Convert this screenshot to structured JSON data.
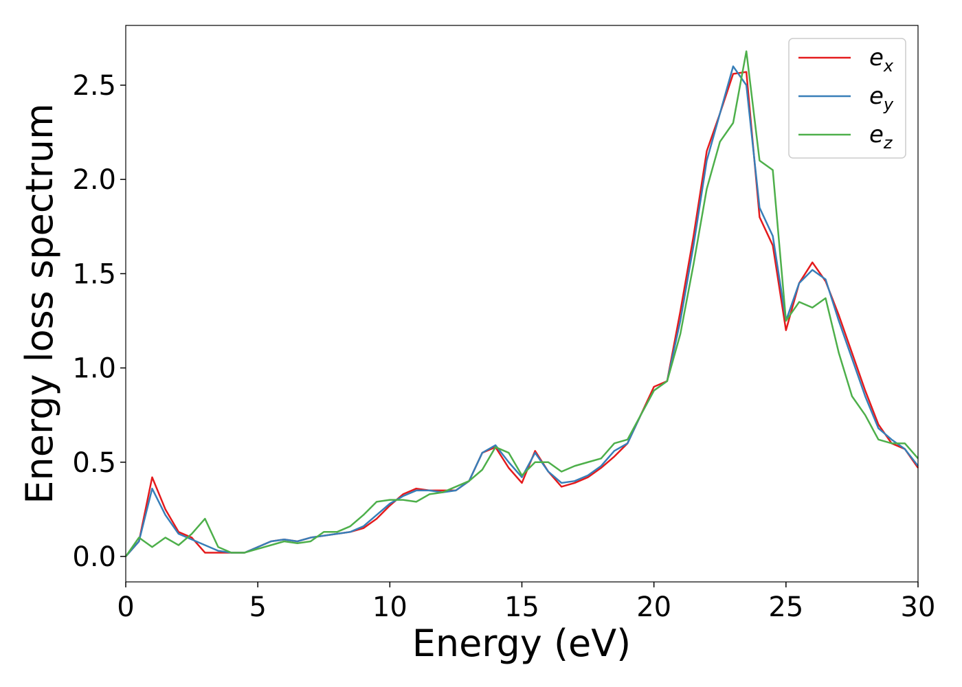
{
  "chart_data": {
    "type": "line",
    "xlabel": "Energy (eV)",
    "ylabel": "Energy loss spectrum",
    "x": [
      0,
      0.5,
      1,
      1.5,
      2,
      2.5,
      3,
      3.5,
      4,
      4.5,
      5,
      5.5,
      6,
      6.5,
      7,
      7.5,
      8,
      8.5,
      9,
      9.5,
      10,
      10.5,
      11,
      11.5,
      12,
      12.5,
      13,
      13.5,
      14,
      14.5,
      15,
      15.5,
      16,
      16.5,
      17,
      17.5,
      18,
      18.5,
      19,
      19.5,
      20,
      20.5,
      21,
      21.5,
      22,
      22.5,
      23,
      23.5,
      24,
      24.5,
      25,
      25.5,
      26,
      26.5,
      27,
      27.5,
      28,
      28.5,
      29,
      29.5,
      30
    ],
    "series": [
      {
        "name": "ex",
        "color": "#e41a1c",
        "values": [
          0,
          0.08,
          0.42,
          0.25,
          0.13,
          0.1,
          0.02,
          0.02,
          0.02,
          0.02,
          0.05,
          0.08,
          0.09,
          0.08,
          0.1,
          0.11,
          0.12,
          0.13,
          0.15,
          0.2,
          0.27,
          0.33,
          0.36,
          0.35,
          0.35,
          0.35,
          0.4,
          0.55,
          0.58,
          0.47,
          0.39,
          0.56,
          0.45,
          0.37,
          0.39,
          0.42,
          0.47,
          0.53,
          0.6,
          0.75,
          0.9,
          0.93,
          1.3,
          1.7,
          2.15,
          2.35,
          2.56,
          2.57,
          1.8,
          1.65,
          1.2,
          1.45,
          1.56,
          1.46,
          1.28,
          1.08,
          0.88,
          0.7,
          0.6,
          0.57,
          0.47
        ]
      },
      {
        "name": "ey",
        "color": "#377eb8",
        "values": [
          0,
          0.08,
          0.36,
          0.22,
          0.12,
          0.09,
          0.06,
          0.03,
          0.02,
          0.02,
          0.05,
          0.08,
          0.09,
          0.08,
          0.1,
          0.11,
          0.12,
          0.13,
          0.16,
          0.22,
          0.28,
          0.32,
          0.35,
          0.35,
          0.34,
          0.35,
          0.4,
          0.55,
          0.59,
          0.5,
          0.42,
          0.55,
          0.45,
          0.39,
          0.4,
          0.43,
          0.48,
          0.56,
          0.6,
          0.75,
          0.88,
          0.93,
          1.25,
          1.65,
          2.1,
          2.35,
          2.6,
          2.5,
          1.85,
          1.7,
          1.25,
          1.45,
          1.52,
          1.47,
          1.25,
          1.05,
          0.85,
          0.68,
          0.62,
          0.57,
          0.48
        ]
      },
      {
        "name": "ez",
        "color": "#4daf4a",
        "values": [
          0,
          0.1,
          0.05,
          0.1,
          0.06,
          0.12,
          0.2,
          0.05,
          0.02,
          0.02,
          0.04,
          0.06,
          0.08,
          0.07,
          0.08,
          0.13,
          0.13,
          0.16,
          0.22,
          0.29,
          0.3,
          0.3,
          0.29,
          0.33,
          0.34,
          0.37,
          0.4,
          0.46,
          0.58,
          0.55,
          0.43,
          0.5,
          0.5,
          0.45,
          0.48,
          0.5,
          0.52,
          0.6,
          0.62,
          0.75,
          0.88,
          0.93,
          1.18,
          1.55,
          1.95,
          2.2,
          2.3,
          2.68,
          2.1,
          2.05,
          1.25,
          1.35,
          1.32,
          1.37,
          1.08,
          0.85,
          0.75,
          0.62,
          0.6,
          0.6,
          0.52
        ]
      }
    ],
    "xlim": [
      0,
      30
    ],
    "xticks": [
      0,
      5,
      10,
      15,
      20,
      25,
      30
    ],
    "ylim": [
      -0.135,
      2.817
    ],
    "yticks": [
      {
        "value": 0,
        "label": "0.0"
      },
      0.5,
      {
        "value": 1,
        "label": "1.0"
      },
      1.5,
      {
        "value": 2,
        "label": "2.0"
      },
      2.5
    ],
    "grid": false,
    "legend": "upper right"
  }
}
